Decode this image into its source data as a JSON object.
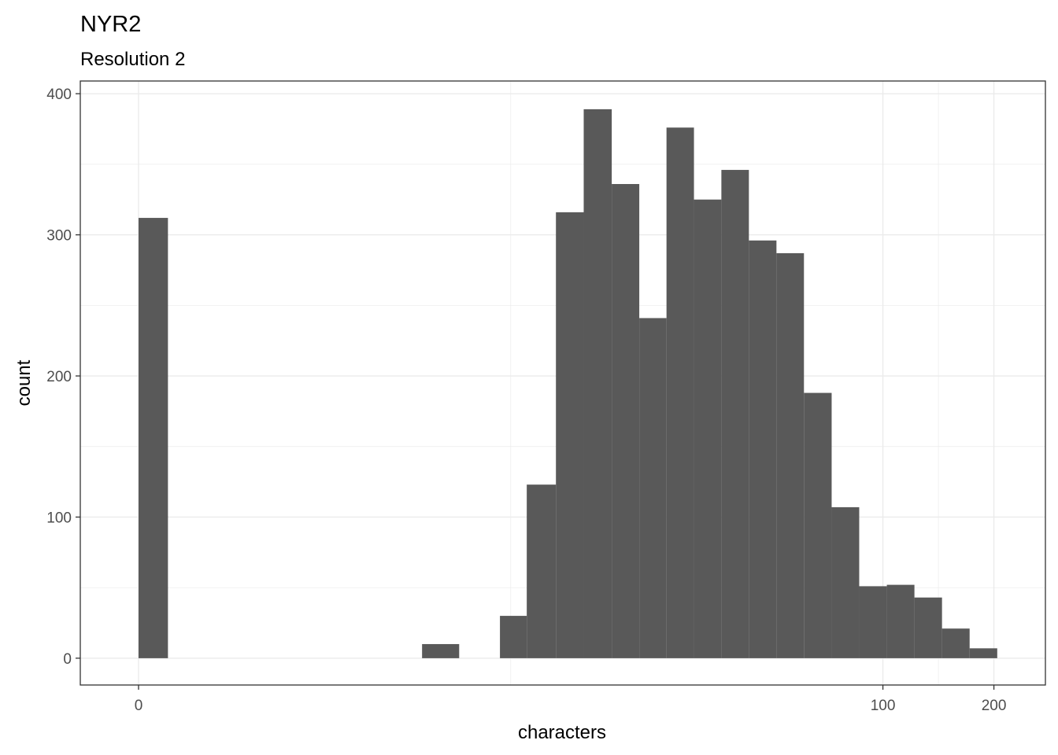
{
  "chart_data": {
    "type": "bar",
    "title": "NYR2",
    "subtitle": "Resolution 2",
    "xlabel": "characters",
    "ylabel": "count",
    "x_scale": "log10(x+1)",
    "bin_width_log10": 0.079,
    "bins": [
      {
        "x_start": 0.0,
        "x_end": 0.2,
        "count": 312
      },
      {
        "x_start": 4.8,
        "x_end": 6.3,
        "count": 10
      },
      {
        "x_start": 8.4,
        "x_end": 10.1,
        "count": 30
      },
      {
        "x_start": 10.1,
        "x_end": 12.3,
        "count": 123
      },
      {
        "x_start": 12.3,
        "x_end": 14.8,
        "count": 316
      },
      {
        "x_start": 14.8,
        "x_end": 17.8,
        "count": 389
      },
      {
        "x_start": 17.8,
        "x_end": 21.3,
        "count": 336
      },
      {
        "x_start": 21.3,
        "x_end": 25.4,
        "count": 241
      },
      {
        "x_start": 25.4,
        "x_end": 30.3,
        "count": 376
      },
      {
        "x_start": 30.3,
        "x_end": 36.1,
        "count": 325
      },
      {
        "x_start": 36.1,
        "x_end": 43.0,
        "count": 346
      },
      {
        "x_start": 43.0,
        "x_end": 51.2,
        "count": 296
      },
      {
        "x_start": 51.2,
        "x_end": 60.9,
        "count": 287
      },
      {
        "x_start": 60.9,
        "x_end": 72.5,
        "count": 188
      },
      {
        "x_start": 72.5,
        "x_end": 86.2,
        "count": 107
      },
      {
        "x_start": 86.2,
        "x_end": 102.5,
        "count": 51
      },
      {
        "x_start": 102.5,
        "x_end": 121.8,
        "count": 52
      },
      {
        "x_start": 121.8,
        "x_end": 144.7,
        "count": 43
      },
      {
        "x_start": 144.7,
        "x_end": 171.9,
        "count": 21
      },
      {
        "x_start": 171.9,
        "x_end": 204.2,
        "count": 7
      }
    ],
    "x_ticks": [
      {
        "value": 0,
        "label": "0"
      },
      {
        "value": 100,
        "label": "100"
      },
      {
        "value": 200,
        "label": "200"
      }
    ],
    "y_ticks": [
      {
        "value": 0,
        "label": "0"
      },
      {
        "value": 100,
        "label": "100"
      },
      {
        "value": 200,
        "label": "200"
      },
      {
        "value": 300,
        "label": "300"
      },
      {
        "value": 400,
        "label": "400"
      }
    ],
    "ylim": [
      -19,
      409
    ],
    "grid": true,
    "colors": {
      "bar": "#595959",
      "grid": "#ebebeb",
      "panel_border": "#333333"
    }
  }
}
